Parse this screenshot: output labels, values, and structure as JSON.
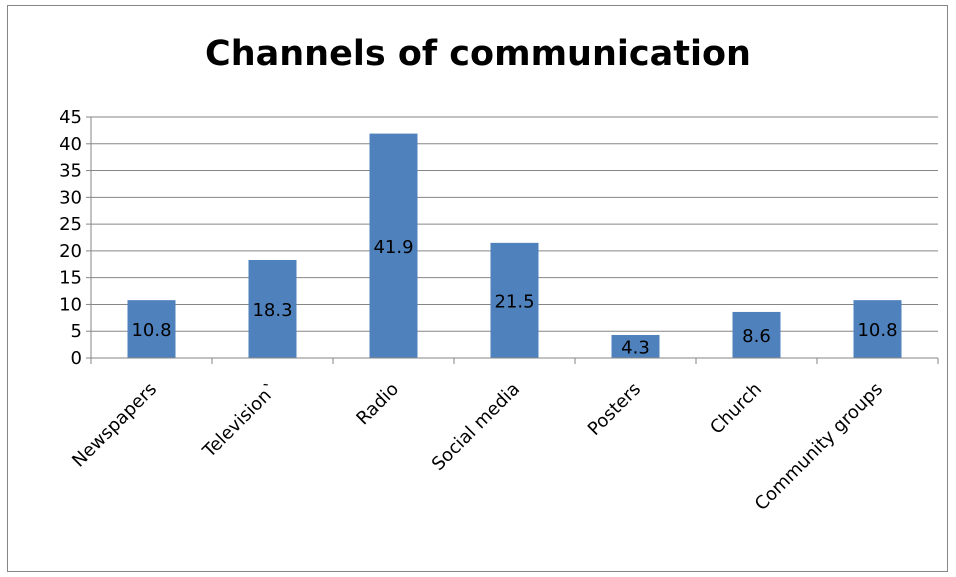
{
  "chart_data": {
    "type": "bar",
    "title": "Channels of communication",
    "categories": [
      "Newspapers",
      "Television`",
      "Radio",
      "Social media",
      "Posters",
      "Church",
      "Community groups"
    ],
    "values": [
      10.8,
      18.3,
      41.9,
      21.5,
      4.3,
      8.6,
      10.8
    ],
    "value_labels": [
      "10.8",
      "18.3",
      "41.9",
      "21.5",
      "4.3",
      "8.6",
      "10.8"
    ],
    "y_ticks": [
      "0",
      "5",
      "10",
      "15",
      "20",
      "25",
      "30",
      "35",
      "40",
      "45"
    ],
    "ylim": [
      0,
      45
    ],
    "grid": true,
    "legend": "none",
    "bar_color": "#4F81BD",
    "grid_color": "#868686"
  }
}
